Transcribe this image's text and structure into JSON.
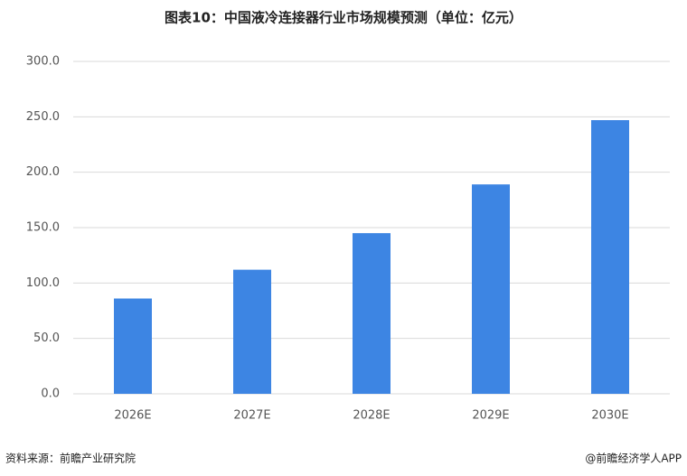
{
  "chart_data": {
    "type": "bar",
    "title": "图表10：中国液冷连接器行业市场规模预测（单位：亿元）",
    "categories": [
      "2026E",
      "2027E",
      "2028E",
      "2029E",
      "2030E"
    ],
    "values": [
      86,
      112,
      145,
      189,
      247
    ],
    "color": "#3d85e3",
    "ylim": [
      0,
      300
    ],
    "yticks": [
      {
        "value": 0,
        "label": "0.0"
      },
      {
        "value": 50,
        "label": "50.0"
      },
      {
        "value": 100,
        "label": "100.0"
      },
      {
        "value": 150,
        "label": "150.0"
      },
      {
        "value": 200,
        "label": "200.0"
      },
      {
        "value": 250,
        "label": "250.0"
      },
      {
        "value": 300,
        "label": "300.0"
      }
    ],
    "grid": true,
    "source": "资料来源：前瞻产业研究院",
    "credit": "@前瞻经济学人APP"
  }
}
